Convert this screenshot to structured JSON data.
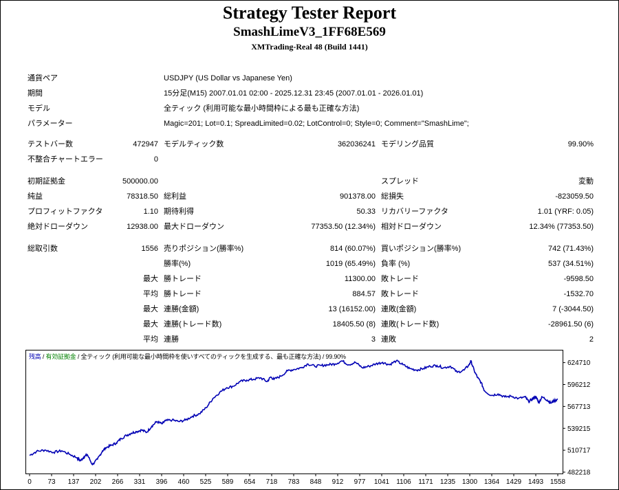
{
  "header": {
    "title": "Strategy Tester Report",
    "subtitle": "SmashLimeV3_1FF68E569",
    "server": "XMTrading-Real 48 (Build 1441)"
  },
  "info": {
    "symbol_label": "通貨ペア",
    "symbol_value": "USDJPY (US Dollar vs Japanese Yen)",
    "period_label": "期間",
    "period_value": "15分足(M15) 2007.01.01 02:00 - 2025.12.31 23:45 (2007.01.01 - 2026.01.01)",
    "model_label": "モデル",
    "model_value": "全ティック (利用可能な最小時間枠による最も正確な方法)",
    "params_label": "パラメーター",
    "params_value": "Magic=201; Lot=0.1; SpreadLimited=0.02; LotControl=0; Style=0; Comment=\"SmashLime\";"
  },
  "stats": {
    "bars_label": "テストバー数",
    "bars_value": "472947",
    "ticks_label": "モデルティック数",
    "ticks_value": "362036241",
    "quality_label": "モデリング品質",
    "quality_value": "99.90%",
    "mismatch_label": "不整合チャートエラー",
    "mismatch_value": "0",
    "deposit_label": "初期証拠金",
    "deposit_value": "500000.00",
    "spread_label": "スプレッド",
    "spread_value": "変動",
    "netprofit_label": "純益",
    "netprofit_value": "78318.50",
    "grossprofit_label": "総利益",
    "grossprofit_value": "901378.00",
    "grossloss_label": "総損失",
    "grossloss_value": "-823059.50",
    "pf_label": "プロフィットファクタ",
    "pf_value": "1.10",
    "expected_label": "期待利得",
    "expected_value": "50.33",
    "recovery_label": "リカバリーファクタ",
    "recovery_value": "1.01 (YRF: 0.05)",
    "absdd_label": "絶対ドローダウン",
    "absdd_value": "12938.00",
    "maxdd_label": "最大ドローダウン",
    "maxdd_value": "77353.50 (12.34%)",
    "reldd_label": "相対ドローダウン",
    "reldd_value": "12.34% (77353.50)",
    "trades_label": "総取引数",
    "trades_value": "1556",
    "short_label": "売りポジション(勝率%)",
    "short_value": "814 (60.07%)",
    "long_label": "買いポジション(勝率%)",
    "long_value": "742 (71.43%)",
    "win_label": "勝率(%)",
    "win_value": "1019 (65.49%)",
    "loss_label": "負率 (%)",
    "loss_value": "537 (34.51%)",
    "max_label": "最大",
    "avg_label": "平均",
    "maxwin_label": "勝トレード",
    "maxwin_value": "11300.00",
    "maxloss_label": "敗トレード",
    "maxloss_value": "-9598.50",
    "avgwin_label": "勝トレード",
    "avgwin_value": "884.57",
    "avgloss_label": "敗トレード",
    "avgloss_value": "-1532.70",
    "maxconswin_label": "連勝(金額)",
    "maxconswin_value": "13 (16152.00)",
    "maxconsloss_label": "連敗(金額)",
    "maxconsloss_value": "7 (-3044.50)",
    "maxconsprofit_label": "連勝(トレード数)",
    "maxconsprofit_value": "18405.50 (8)",
    "maxconsloss2_label": "連敗(トレード数)",
    "maxconsloss2_value": "-28961.50 (6)",
    "avgconswin_label": "連勝",
    "avgconswin_value": "3",
    "avgconsloss_label": "連敗",
    "avgconsloss_value": "2"
  },
  "chart_data": {
    "type": "line",
    "legend": {
      "balance": "残高",
      "equity": "有効証拠金",
      "model": "全ティック (利用可能な最小時間枠を使いすべてのティックを生成する、最も正確な方法)",
      "quality": "99.90%"
    },
    "colors": {
      "line": "#0000b4",
      "grid": "#c8c8c8",
      "axis": "#000000",
      "legend_blue": "#0000b4",
      "legend_green": "#008000"
    },
    "x_ticks": [
      "0",
      "73",
      "137",
      "202",
      "266",
      "331",
      "396",
      "460",
      "525",
      "589",
      "654",
      "718",
      "783",
      "848",
      "912",
      "977",
      "1041",
      "1106",
      "1171",
      "1235",
      "1300",
      "1364",
      "1429",
      "1493",
      "1558"
    ],
    "y_ticks": [
      "482218",
      "510717",
      "539215",
      "567713",
      "596212",
      "624710"
    ],
    "xlim": [
      0,
      1556
    ],
    "ylim": [
      482218,
      636000
    ],
    "grid": false,
    "series": [
      {
        "x": [
          0,
          20,
          45,
          70,
          95,
          120,
          140,
          150,
          160,
          170,
          185,
          200,
          215,
          225,
          240,
          255,
          270,
          285,
          300,
          315,
          330,
          345,
          360,
          375,
          390,
          400,
          420,
          440,
          460,
          480,
          500,
          520,
          540,
          560,
          580,
          600,
          620,
          640,
          660,
          680,
          700,
          710,
          720,
          740,
          760,
          780,
          800,
          820,
          840,
          860,
          880,
          900,
          920,
          940,
          960,
          980,
          1000,
          1020,
          1040,
          1060,
          1080,
          1100,
          1120,
          1140,
          1160,
          1180,
          1200,
          1220,
          1240,
          1260,
          1280,
          1295,
          1300,
          1310,
          1320,
          1330,
          1340,
          1360,
          1380,
          1400,
          1420,
          1440,
          1460,
          1470,
          1480,
          1490,
          1495,
          1500,
          1510,
          1525,
          1535,
          1545,
          1556
        ],
        "y": [
          504000,
          509000,
          511000,
          508000,
          510000,
          505000,
          501000,
          497000,
          502000,
          505000,
          492000,
          499000,
          510000,
          514000,
          517000,
          520000,
          526000,
          530000,
          533000,
          535000,
          537000,
          534000,
          542000,
          548000,
          545000,
          549000,
          550000,
          548000,
          550000,
          555000,
          558000,
          566000,
          578000,
          586000,
          592000,
          594000,
          600000,
          602000,
          603000,
          605000,
          600000,
          606000,
          603000,
          607000,
          614000,
          616000,
          618000,
          623000,
          620000,
          621000,
          622000,
          623000,
          627000,
          622000,
          625000,
          618000,
          620000,
          623000,
          625000,
          622000,
          627000,
          622000,
          617000,
          615000,
          617000,
          620000,
          621000,
          618000,
          620000,
          612000,
          615000,
          622000,
          627000,
          614000,
          605000,
          599000,
          588000,
          582000,
          584000,
          580000,
          581000,
          578000,
          580000,
          574000,
          577000,
          580000,
          578000,
          573000,
          580000,
          576000,
          572000,
          575000,
          577000
        ]
      }
    ]
  }
}
